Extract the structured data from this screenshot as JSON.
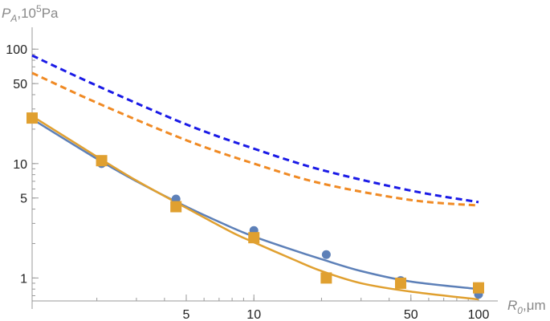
{
  "chart_data": {
    "type": "line",
    "xscale": "log",
    "yscale": "log",
    "xlim": [
      1.03,
      100
    ],
    "ylim": [
      0.63,
      130
    ],
    "grid": false,
    "legend": "none",
    "xlabel": {
      "base": "R",
      "sub": "0",
      "unit": ",μm"
    },
    "ylabel": {
      "base": "P",
      "sub": "A",
      "unit": ",10",
      "sup": "5",
      "unit2": "Pa"
    },
    "x_ticks": [
      5,
      10,
      50,
      100
    ],
    "x_tick_labels": [
      "5",
      "10",
      "50",
      "100"
    ],
    "y_ticks": [
      1,
      5,
      10,
      50,
      100
    ],
    "y_tick_labels": [
      "1",
      "5",
      "10",
      "50",
      "100"
    ],
    "series": [
      {
        "style": "dashed",
        "color": "#1a1ae6",
        "x": [
          1.03,
          2,
          5,
          10,
          20,
          50,
          100
        ],
        "y": [
          88,
          48,
          22,
          13.5,
          8.8,
          5.8,
          4.6
        ]
      },
      {
        "style": "dashed",
        "color": "#f08a24",
        "x": [
          1.03,
          2,
          5,
          10,
          20,
          50,
          100
        ],
        "y": [
          62,
          34,
          16,
          10,
          6.7,
          4.8,
          4.3
        ]
      },
      {
        "style": "solid",
        "color": "#5d80b8",
        "x": [
          1.03,
          2,
          3,
          5,
          8,
          10,
          15,
          20,
          30,
          50,
          100
        ],
        "y": [
          24.5,
          11,
          7,
          4.2,
          2.75,
          2.3,
          1.75,
          1.46,
          1.15,
          0.93,
          0.8
        ]
      },
      {
        "style": "solid",
        "color": "#e0a030",
        "x": [
          1.03,
          2,
          3,
          5,
          8,
          10,
          15,
          20,
          30,
          50,
          100
        ],
        "y": [
          26,
          11.5,
          7.1,
          4.1,
          2.5,
          2.05,
          1.45,
          1.15,
          0.9,
          0.76,
          0.65
        ]
      },
      {
        "style": "points",
        "marker": "circle",
        "color": "#5d80b8",
        "x": [
          1.03,
          2.1,
          4.5,
          10,
          21,
          45,
          100
        ],
        "y": [
          24.5,
          10,
          4.9,
          2.6,
          1.6,
          0.95,
          0.72
        ]
      },
      {
        "style": "points",
        "marker": "square",
        "color": "#e0a030",
        "x": [
          1.03,
          2.1,
          4.5,
          10,
          21,
          45,
          100
        ],
        "y": [
          25,
          10.6,
          4.2,
          2.25,
          1.0,
          0.9,
          0.82
        ]
      }
    ]
  }
}
